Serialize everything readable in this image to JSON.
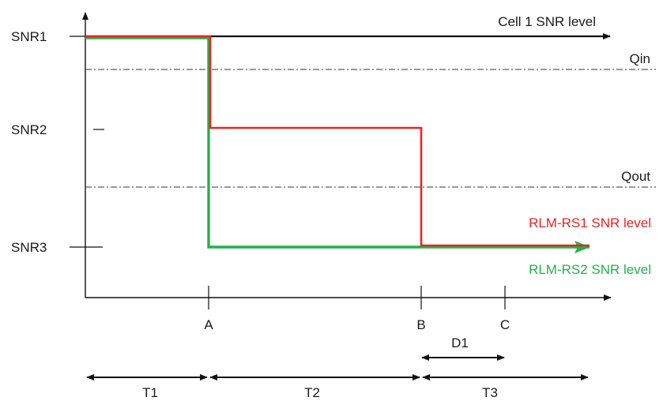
{
  "diagram": {
    "y_ticks": [
      {
        "label": "SNR1"
      },
      {
        "label": "SNR2"
      },
      {
        "label": "SNR3"
      }
    ],
    "x_ticks": [
      {
        "label": "A"
      },
      {
        "label": "B"
      },
      {
        "label": "C"
      }
    ],
    "thresholds": [
      {
        "label": "Qin"
      },
      {
        "label": "Qout"
      }
    ],
    "series": [
      {
        "label": "Cell 1 SNR level",
        "color": "#111111"
      },
      {
        "label": "RLM-RS1 SNR level",
        "color": "#e8261e"
      },
      {
        "label": "RLM-RS2 SNR level",
        "color": "#22b14c"
      }
    ],
    "intervals": [
      {
        "label": "T1"
      },
      {
        "label": "T2"
      },
      {
        "label": "T3"
      }
    ],
    "duration": {
      "label": "D1"
    }
  }
}
